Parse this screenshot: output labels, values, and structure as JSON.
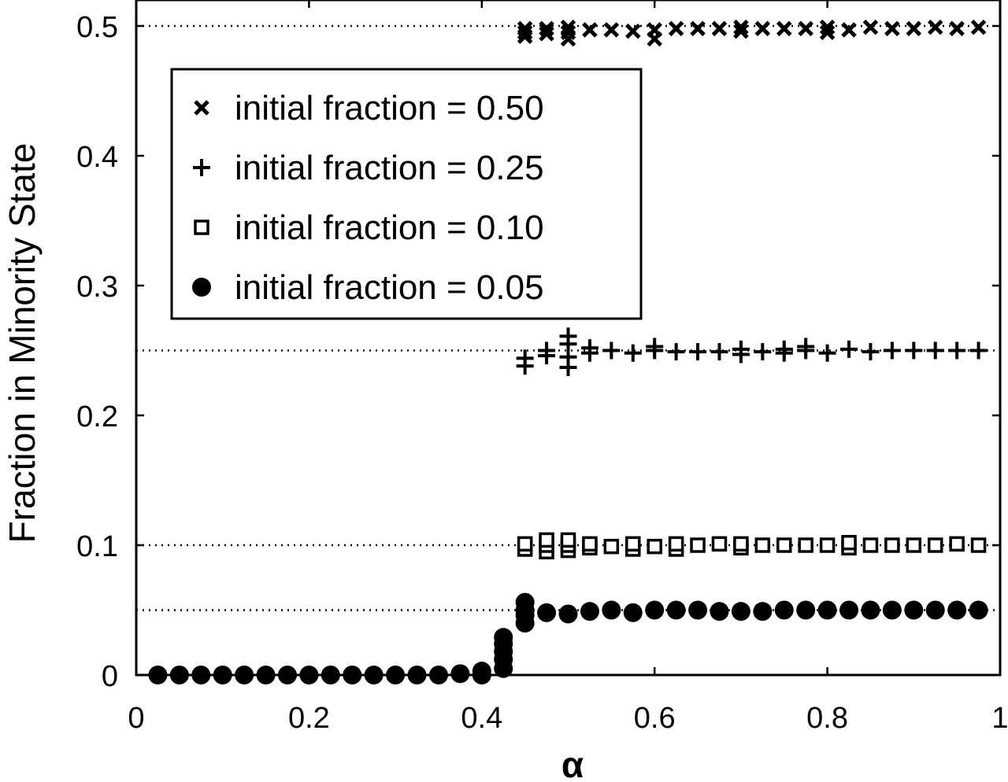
{
  "chart_data": {
    "type": "scatter",
    "xlabel": "α",
    "ylabel": "Fraction in Minority State",
    "xlim": [
      0,
      1
    ],
    "ylim": [
      0,
      0.52
    ],
    "xticks": [
      {
        "value": 0,
        "label": "0"
      },
      {
        "value": 0.2,
        "label": "0.2"
      },
      {
        "value": 0.4,
        "label": "0.4"
      },
      {
        "value": 0.6,
        "label": "0.6"
      },
      {
        "value": 0.8,
        "label": "0.8"
      },
      {
        "value": 1,
        "label": "1"
      }
    ],
    "yticks": [
      {
        "value": 0,
        "label": "0"
      },
      {
        "value": 0.1,
        "label": "0.1"
      },
      {
        "value": 0.2,
        "label": "0.2"
      },
      {
        "value": 0.3,
        "label": "0.3"
      },
      {
        "value": 0.4,
        "label": "0.4"
      },
      {
        "value": 0.5,
        "label": "0.5"
      }
    ],
    "grid": false,
    "legend_position": "upper-left",
    "reference_lines": [
      0.5,
      0.25,
      0.1,
      0.05
    ],
    "series": [
      {
        "name": "initial fraction = 0.50",
        "marker": "x",
        "x": [
          0.45,
          0.45,
          0.45,
          0.475,
          0.475,
          0.5,
          0.5,
          0.5,
          0.525,
          0.55,
          0.575,
          0.6,
          0.6,
          0.625,
          0.65,
          0.675,
          0.7,
          0.7,
          0.725,
          0.75,
          0.775,
          0.8,
          0.8,
          0.825,
          0.85,
          0.875,
          0.9,
          0.925,
          0.95,
          0.975
        ],
        "y": [
          0.495,
          0.492,
          0.498,
          0.494,
          0.498,
          0.49,
          0.495,
          0.499,
          0.497,
          0.497,
          0.496,
          0.49,
          0.497,
          0.498,
          0.498,
          0.498,
          0.496,
          0.499,
          0.498,
          0.498,
          0.498,
          0.495,
          0.499,
          0.497,
          0.499,
          0.498,
          0.498,
          0.499,
          0.498,
          0.499
        ]
      },
      {
        "name": "initial fraction = 0.25",
        "marker": "+",
        "x": [
          0.45,
          0.45,
          0.475,
          0.475,
          0.5,
          0.5,
          0.5,
          0.5,
          0.525,
          0.525,
          0.55,
          0.575,
          0.6,
          0.6,
          0.625,
          0.65,
          0.675,
          0.7,
          0.7,
          0.725,
          0.75,
          0.75,
          0.775,
          0.775,
          0.8,
          0.825,
          0.85,
          0.875,
          0.9,
          0.925,
          0.95,
          0.975
        ],
        "y": [
          0.238,
          0.244,
          0.246,
          0.25,
          0.237,
          0.245,
          0.255,
          0.261,
          0.248,
          0.252,
          0.25,
          0.248,
          0.25,
          0.253,
          0.249,
          0.249,
          0.249,
          0.247,
          0.251,
          0.249,
          0.248,
          0.251,
          0.25,
          0.253,
          0.248,
          0.251,
          0.249,
          0.25,
          0.25,
          0.25,
          0.25,
          0.25
        ]
      },
      {
        "name": "initial fraction = 0.10",
        "marker": "square",
        "x": [
          0.45,
          0.45,
          0.475,
          0.475,
          0.475,
          0.5,
          0.5,
          0.5,
          0.525,
          0.525,
          0.55,
          0.575,
          0.575,
          0.6,
          0.625,
          0.625,
          0.65,
          0.675,
          0.7,
          0.7,
          0.725,
          0.75,
          0.775,
          0.8,
          0.825,
          0.825,
          0.85,
          0.875,
          0.9,
          0.925,
          0.95,
          0.975
        ],
        "y": [
          0.097,
          0.101,
          0.095,
          0.1,
          0.104,
          0.096,
          0.1,
          0.104,
          0.098,
          0.101,
          0.099,
          0.097,
          0.101,
          0.099,
          0.097,
          0.101,
          0.1,
          0.101,
          0.098,
          0.101,
          0.1,
          0.1,
          0.1,
          0.1,
          0.098,
          0.102,
          0.1,
          0.1,
          0.1,
          0.1,
          0.101,
          0.1
        ]
      },
      {
        "name": "initial fraction = 0.05",
        "marker": "circle",
        "x": [
          0.025,
          0.05,
          0.075,
          0.1,
          0.125,
          0.15,
          0.175,
          0.2,
          0.225,
          0.25,
          0.275,
          0.3,
          0.325,
          0.35,
          0.375,
          0.4,
          0.4,
          0.425,
          0.425,
          0.425,
          0.425,
          0.425,
          0.45,
          0.45,
          0.45,
          0.45,
          0.475,
          0.5,
          0.525,
          0.55,
          0.575,
          0.6,
          0.625,
          0.65,
          0.675,
          0.7,
          0.725,
          0.75,
          0.775,
          0.8,
          0.825,
          0.85,
          0.875,
          0.9,
          0.925,
          0.95,
          0.975
        ],
        "y": [
          0,
          0,
          0,
          0,
          0,
          0,
          0,
          0,
          0,
          0,
          0,
          0,
          0,
          0,
          0.001,
          0,
          0.003,
          0.005,
          0.012,
          0.018,
          0.024,
          0.029,
          0.04,
          0.046,
          0.05,
          0.056,
          0.048,
          0.047,
          0.049,
          0.05,
          0.048,
          0.05,
          0.05,
          0.05,
          0.049,
          0.049,
          0.049,
          0.05,
          0.05,
          0.05,
          0.05,
          0.05,
          0.05,
          0.05,
          0.05,
          0.05,
          0.05
        ]
      }
    ]
  }
}
